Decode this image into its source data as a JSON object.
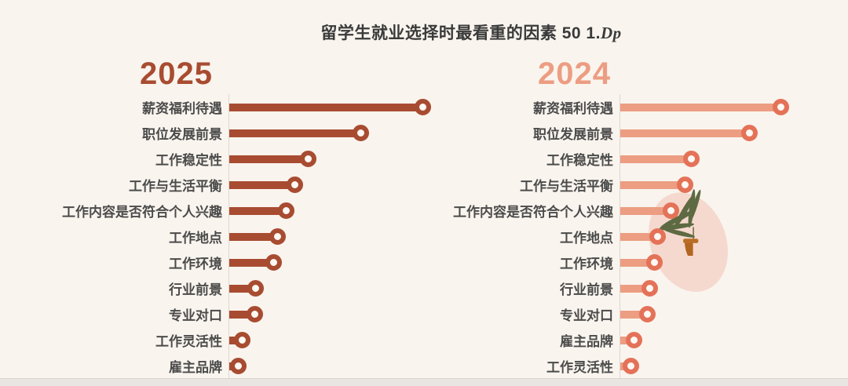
{
  "page": {
    "background": "#F9F4EE",
    "bottom_bar_color": "#E9E6E2"
  },
  "title": {
    "text": "留学生就业选择时最看重的因素",
    "suffix_num": "50 1.",
    "suffix_script": "Dp"
  },
  "chart_data": [
    {
      "type": "bar",
      "orientation": "horizontal",
      "title": "2025",
      "categories": [
        "薪资福利待遇",
        "职位发展前景",
        "工作稳定性",
        "工作与生活平衡",
        "工作内容是否符合个人兴趣",
        "工作地点",
        "工作环境",
        "行业前景",
        "专业对口",
        "工作灵活性",
        "雇主品牌"
      ],
      "values": [
        246,
        167,
        100,
        83,
        72,
        61,
        56,
        33,
        32,
        16,
        11
      ],
      "value_note": "no numeric axis shown; values are relative bar lengths in px measured from the chart",
      "bar_color": "#A84C31",
      "ring_color": "#A84C31",
      "legend_position": "none",
      "grid": false
    },
    {
      "type": "bar",
      "orientation": "horizontal",
      "title": "2024",
      "categories": [
        "薪资福利待遇",
        "职位发展前景",
        "工作稳定性",
        "工作与生活平衡",
        "工作内容是否符合个人兴趣",
        "工作地点",
        "工作环境",
        "行业前景",
        "专业对口",
        "雇主品牌",
        "工作灵活性"
      ],
      "values": [
        204,
        164,
        90,
        82,
        64,
        47,
        43,
        37,
        34,
        17,
        13
      ],
      "value_note": "no numeric axis shown; values are relative bar lengths in px measured from the chart",
      "bar_color": "#EC9D82",
      "ring_color": "#E47258",
      "legend_position": "none",
      "grid": false
    }
  ],
  "decor": {
    "blob_color": "#F5D9CE",
    "leaf_color": "#5E6A42",
    "pot_color": "#B2661F",
    "pot_rim_color": "#BA6E26",
    "axis_line_color": "#DCD7D1",
    "ring_fill": "#FDF8F3",
    "label_color": "#4B4B4B",
    "title_color": "#3A3A3A"
  }
}
